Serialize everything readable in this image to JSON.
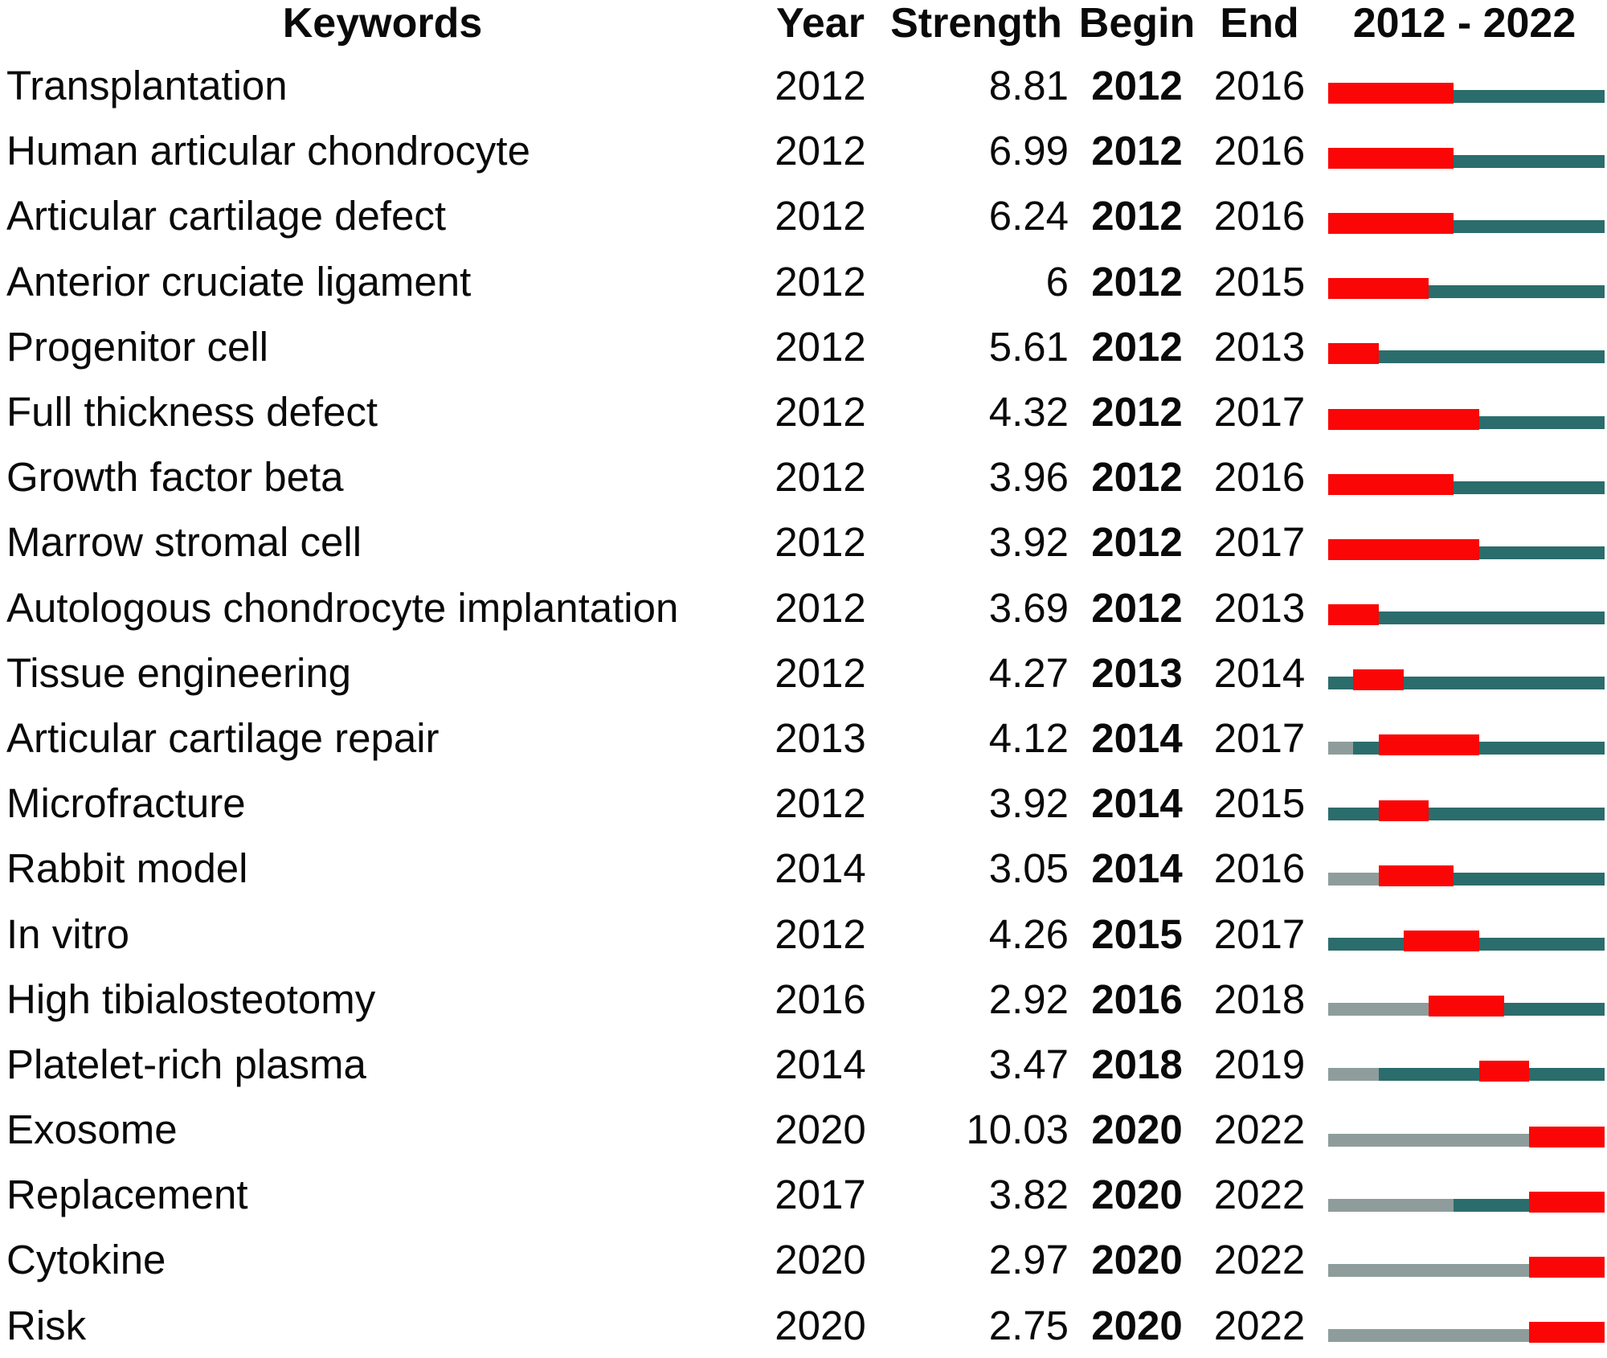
{
  "figure": {
    "description_visible_header": [
      "Keywords",
      "Year",
      "Strength",
      "Begin",
      "End",
      "2012 - 2022"
    ]
  },
  "header": {
    "keywords": "Keywords",
    "year": "Year",
    "strength": "Strength",
    "begin": "Begin",
    "end": "End",
    "timeline": "2012 - 2022"
  },
  "colors": {
    "burst_red": "#FA0606",
    "active_teal": "#2B6D6C",
    "pre_gray": "#8E9D9B",
    "text": "#0a0a0a",
    "background": "#ffffff"
  },
  "chart_data": {
    "type": "table",
    "columns": [
      "Keywords",
      "Year",
      "Strength",
      "Begin",
      "End",
      "2012 - 2022"
    ],
    "timeline_range": [
      2012,
      2022
    ],
    "bar_legend": {
      "red_segment": "burst period (Begin to End)",
      "teal_segment": "keyword active period",
      "gray_segment": "before first appearance year"
    },
    "rows": [
      {
        "keyword": "Transplantation",
        "year": 2012,
        "strength": "8.81",
        "begin": 2012,
        "end": 2016
      },
      {
        "keyword": "Human articular chondrocyte",
        "year": 2012,
        "strength": "6.99",
        "begin": 2012,
        "end": 2016
      },
      {
        "keyword": "Articular cartilage defect",
        "year": 2012,
        "strength": "6.24",
        "begin": 2012,
        "end": 2016
      },
      {
        "keyword": "Anterior cruciate ligament",
        "year": 2012,
        "strength": "6",
        "begin": 2012,
        "end": 2015
      },
      {
        "keyword": "Progenitor cell",
        "year": 2012,
        "strength": "5.61",
        "begin": 2012,
        "end": 2013
      },
      {
        "keyword": "Full thickness defect",
        "year": 2012,
        "strength": "4.32",
        "begin": 2012,
        "end": 2017
      },
      {
        "keyword": "Growth factor beta",
        "year": 2012,
        "strength": "3.96",
        "begin": 2012,
        "end": 2016
      },
      {
        "keyword": "Marrow stromal cell",
        "year": 2012,
        "strength": "3.92",
        "begin": 2012,
        "end": 2017
      },
      {
        "keyword": "Autologous chondrocyte implantation",
        "year": 2012,
        "strength": "3.69",
        "begin": 2012,
        "end": 2013
      },
      {
        "keyword": "Tissue engineering",
        "year": 2012,
        "strength": "4.27",
        "begin": 2013,
        "end": 2014
      },
      {
        "keyword": "Articular cartilage repair",
        "year": 2013,
        "strength": "4.12",
        "begin": 2014,
        "end": 2017
      },
      {
        "keyword": "Microfracture",
        "year": 2012,
        "strength": "3.92",
        "begin": 2014,
        "end": 2015
      },
      {
        "keyword": "Rabbit model",
        "year": 2014,
        "strength": "3.05",
        "begin": 2014,
        "end": 2016
      },
      {
        "keyword": "In vitro",
        "year": 2012,
        "strength": "4.26",
        "begin": 2015,
        "end": 2017
      },
      {
        "keyword": "High tibialosteotomy",
        "year": 2016,
        "strength": "2.92",
        "begin": 2016,
        "end": 2018
      },
      {
        "keyword": "Platelet-rich plasma",
        "year": 2014,
        "strength": "3.47",
        "begin": 2018,
        "end": 2019
      },
      {
        "keyword": "Exosome",
        "year": 2020,
        "strength": "10.03",
        "begin": 2020,
        "end": 2022
      },
      {
        "keyword": "Replacement",
        "year": 2017,
        "strength": "3.82",
        "begin": 2020,
        "end": 2022
      },
      {
        "keyword": "Cytokine",
        "year": 2020,
        "strength": "2.97",
        "begin": 2020,
        "end": 2022
      },
      {
        "keyword": "Risk",
        "year": 2020,
        "strength": "2.75",
        "begin": 2020,
        "end": 2022
      }
    ]
  }
}
